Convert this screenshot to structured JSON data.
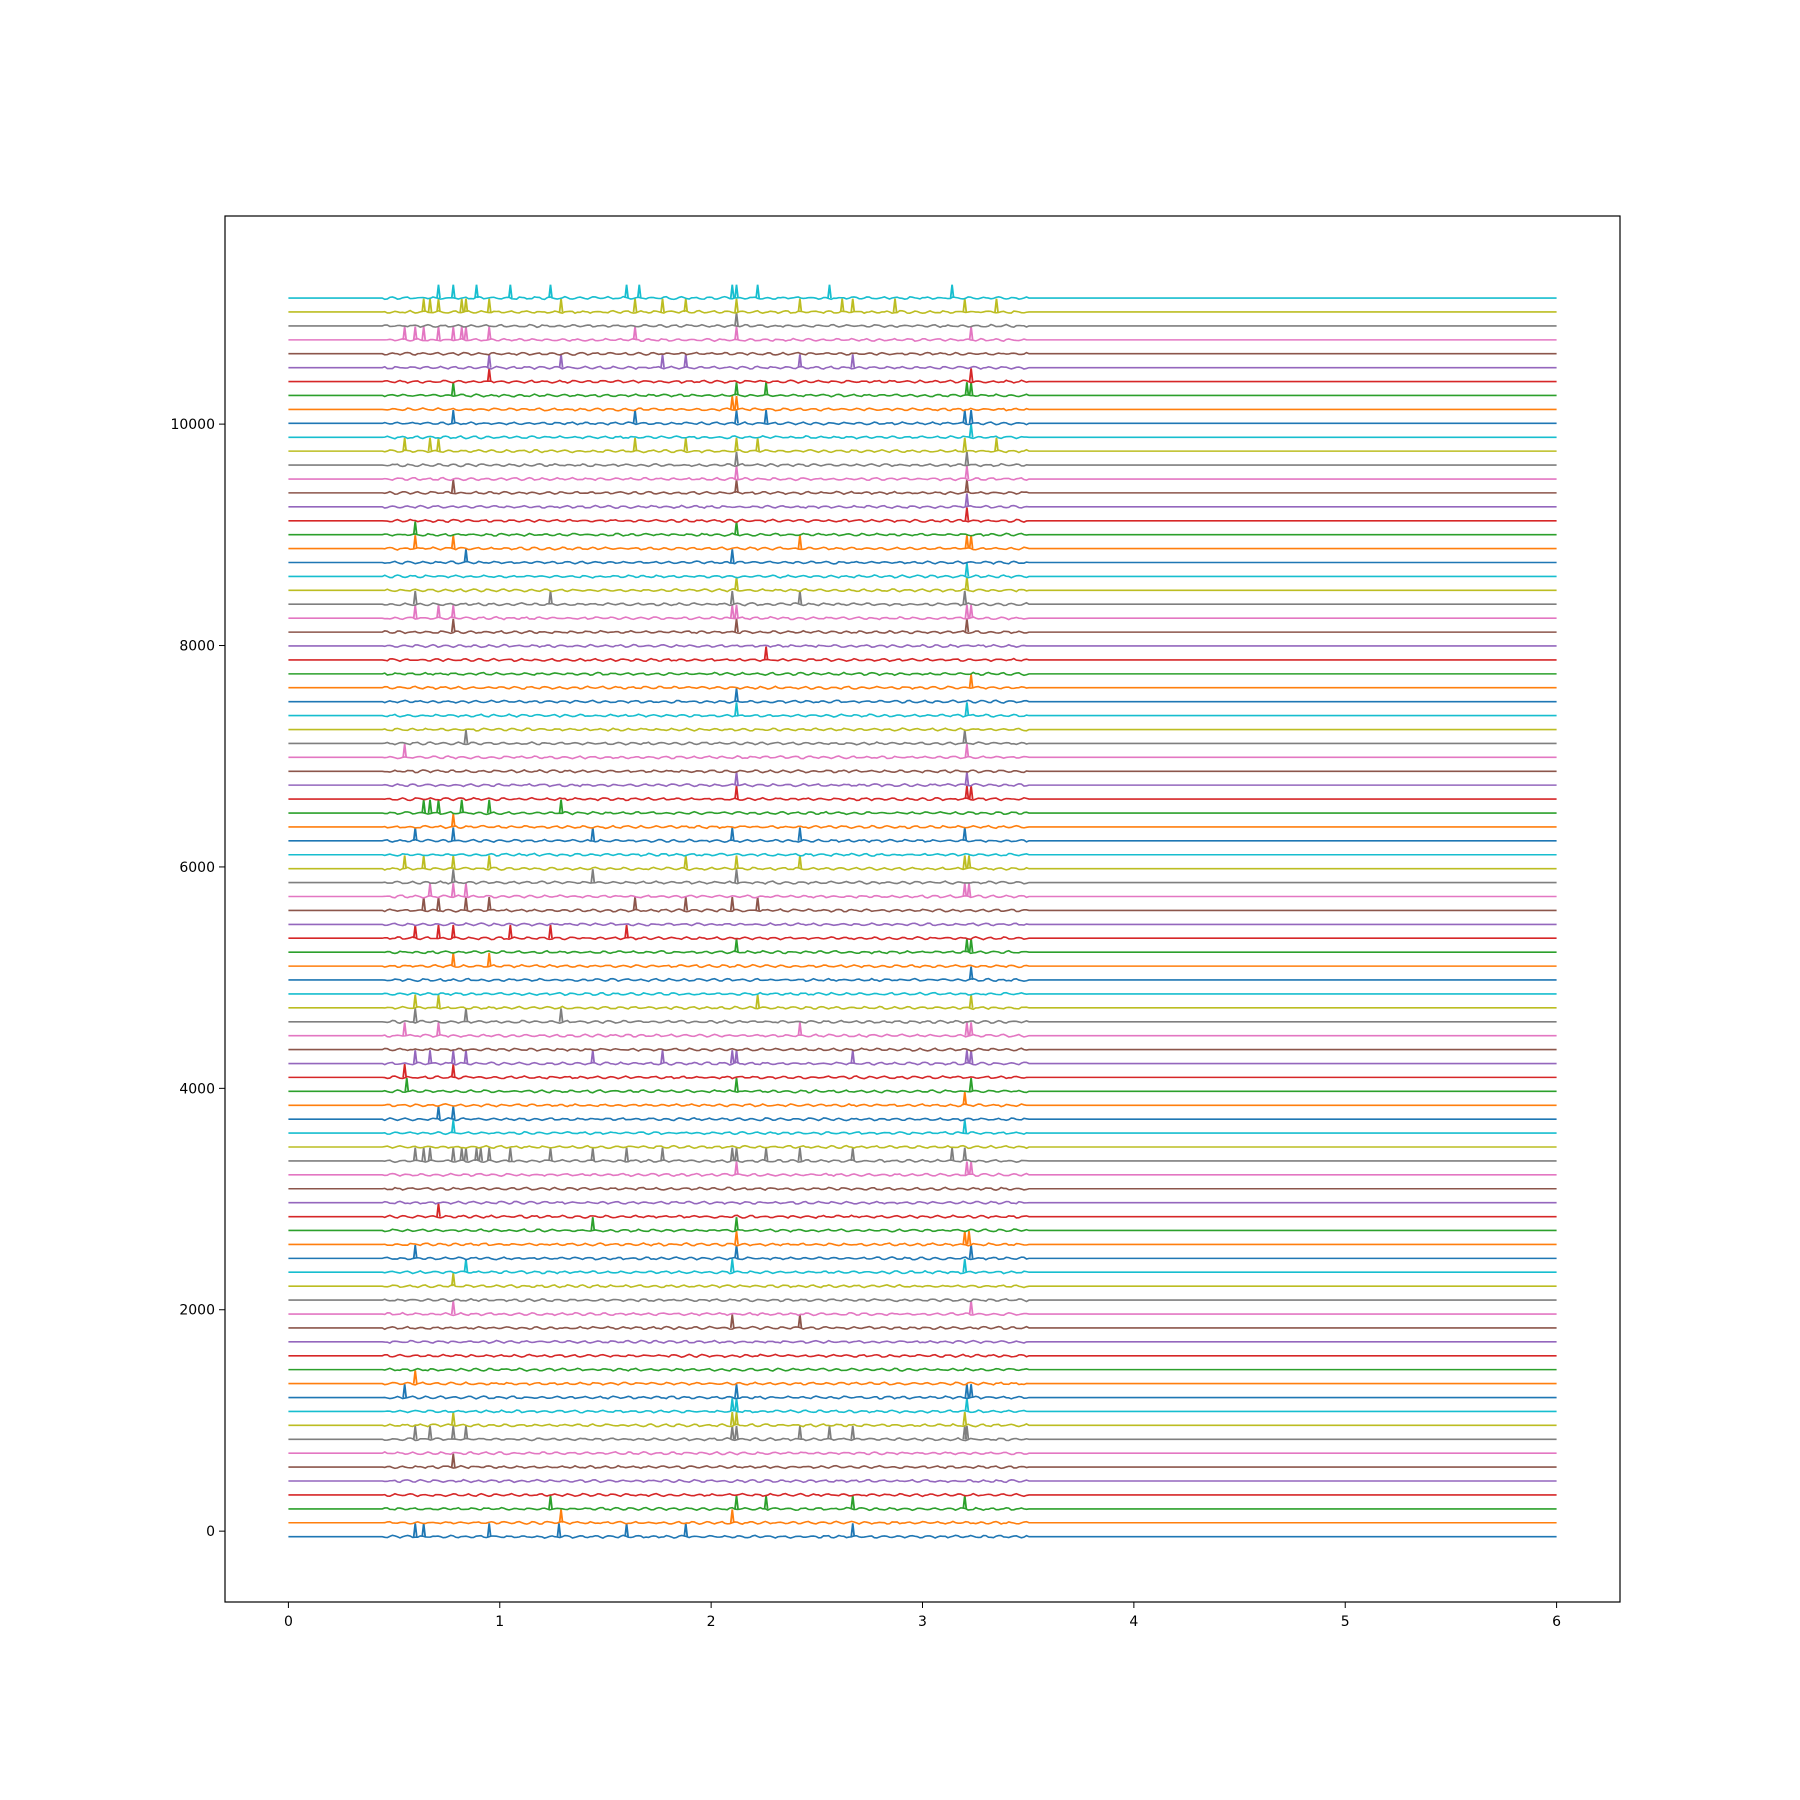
{
  "chart_data": {
    "type": "line",
    "title": "",
    "xlabel": "",
    "ylabel": "",
    "xlim": [
      -0.3,
      6.3
    ],
    "ylim": [
      -640,
      11880
    ],
    "x_range": [
      0,
      6
    ],
    "activity_end_x": 3.5,
    "xticks": [
      0,
      1,
      2,
      3,
      4,
      5,
      6
    ],
    "yticks": [
      0,
      2000,
      4000,
      6000,
      8000,
      10000
    ],
    "baseline_start": -50,
    "baseline_step": 125.7,
    "grid": false,
    "legend": "none",
    "series_colors": [
      "#1f77b4",
      "#ff7f0e",
      "#2ca02c",
      "#d62728",
      "#9467bd",
      "#8c564b",
      "#e377c2",
      "#7f7f7f",
      "#bcbd22",
      "#17becf"
    ],
    "series": [
      {
        "baseline": -50,
        "spikes": [
          0.6,
          0.64,
          0.95,
          1.28,
          1.6,
          1.88,
          2.67
        ],
        "peak": 120
      },
      {
        "baseline": 76,
        "spikes": [
          1.29,
          2.1
        ],
        "peak": 120
      },
      {
        "baseline": 201,
        "spikes": [
          1.24,
          2.12,
          2.26,
          2.67,
          3.2
        ],
        "peak": 120
      },
      {
        "baseline": 327,
        "spikes": [],
        "peak": 120
      },
      {
        "baseline": 453,
        "spikes": [],
        "peak": 120
      },
      {
        "baseline": 579,
        "spikes": [
          0.78
        ],
        "peak": 120
      },
      {
        "baseline": 704,
        "spikes": [],
        "peak": 120
      },
      {
        "baseline": 830,
        "spikes": [
          0.6,
          0.67,
          0.78,
          0.84,
          2.1,
          2.12,
          2.42,
          2.56,
          2.67,
          3.2,
          3.21
        ],
        "peak": 120
      },
      {
        "baseline": 956,
        "spikes": [
          0.78,
          2.1,
          2.12,
          3.2
        ],
        "peak": 120
      },
      {
        "baseline": 1081,
        "spikes": [
          2.1,
          2.12,
          3.21
        ],
        "peak": 120
      },
      {
        "baseline": 1207,
        "spikes": [
          0.55,
          2.12,
          3.21,
          3.23
        ],
        "peak": 120
      },
      {
        "baseline": 1333,
        "spikes": [
          0.6
        ],
        "peak": 120
      },
      {
        "baseline": 1459,
        "spikes": [],
        "peak": 120
      },
      {
        "baseline": 1584,
        "spikes": [],
        "peak": 120
      },
      {
        "baseline": 1710,
        "spikes": [],
        "peak": 120
      },
      {
        "baseline": 1836,
        "spikes": [
          2.1,
          2.42
        ],
        "peak": 120
      },
      {
        "baseline": 1961,
        "spikes": [
          0.78,
          3.23
        ],
        "peak": 120
      },
      {
        "baseline": 2087,
        "spikes": [],
        "peak": 120
      },
      {
        "baseline": 2213,
        "spikes": [
          0.78
        ],
        "peak": 120
      },
      {
        "baseline": 2339,
        "spikes": [
          0.84,
          2.1,
          3.2
        ],
        "peak": 120
      },
      {
        "baseline": 2464,
        "spikes": [
          0.6,
          2.12,
          3.23
        ],
        "peak": 120
      },
      {
        "baseline": 2590,
        "spikes": [
          2.12,
          3.2,
          3.22
        ],
        "peak": 120
      },
      {
        "baseline": 2716,
        "spikes": [
          1.44,
          2.12
        ],
        "peak": 120
      },
      {
        "baseline": 2841,
        "spikes": [
          0.71
        ],
        "peak": 120
      },
      {
        "baseline": 2967,
        "spikes": [],
        "peak": 120
      },
      {
        "baseline": 3093,
        "spikes": [],
        "peak": 120
      },
      {
        "baseline": 3219,
        "spikes": [
          2.12,
          3.21,
          3.23
        ],
        "peak": 120
      },
      {
        "baseline": 3344,
        "spikes": [
          0.6,
          0.64,
          0.67,
          0.78,
          0.82,
          0.84,
          0.89,
          0.91,
          0.95,
          1.05,
          1.24,
          1.44,
          1.6,
          1.77,
          2.1,
          2.12,
          2.26,
          2.42,
          2.67,
          3.14,
          3.2
        ],
        "peak": 120
      },
      {
        "baseline": 3470,
        "spikes": [],
        "peak": 120
      },
      {
        "baseline": 3596,
        "spikes": [
          0.78,
          3.2
        ],
        "peak": 120
      },
      {
        "baseline": 3721,
        "spikes": [
          0.71,
          0.78
        ],
        "peak": 120
      },
      {
        "baseline": 3847,
        "spikes": [
          3.2
        ],
        "peak": 120
      },
      {
        "baseline": 3973,
        "spikes": [
          0.56,
          2.12,
          3.23
        ],
        "peak": 120
      },
      {
        "baseline": 4099,
        "spikes": [
          0.55,
          0.78
        ],
        "peak": 120
      },
      {
        "baseline": 4224,
        "spikes": [
          0.6,
          0.67,
          0.78,
          0.84,
          1.44,
          1.77,
          2.1,
          2.12,
          2.67,
          3.21,
          3.23
        ],
        "peak": 120
      },
      {
        "baseline": 4350,
        "spikes": [],
        "peak": 120
      },
      {
        "baseline": 4476,
        "spikes": [
          0.55,
          0.71,
          2.42,
          3.21,
          3.23
        ],
        "peak": 120
      },
      {
        "baseline": 4601,
        "spikes": [
          0.6,
          0.84,
          1.29
        ],
        "peak": 120
      },
      {
        "baseline": 4727,
        "spikes": [
          0.6,
          0.71,
          2.22,
          3.23
        ],
        "peak": 120
      },
      {
        "baseline": 4853,
        "spikes": [],
        "peak": 120
      },
      {
        "baseline": 4979,
        "spikes": [
          3.23
        ],
        "peak": 120
      },
      {
        "baseline": 5104,
        "spikes": [
          0.78,
          0.95
        ],
        "peak": 120
      },
      {
        "baseline": 5230,
        "spikes": [
          2.12,
          3.21,
          3.23
        ],
        "peak": 120
      },
      {
        "baseline": 5356,
        "spikes": [
          0.6,
          0.71,
          0.78,
          1.05,
          1.24,
          1.6
        ],
        "peak": 120
      },
      {
        "baseline": 5481,
        "spikes": [],
        "peak": 120
      },
      {
        "baseline": 5607,
        "spikes": [
          0.64,
          0.71,
          0.84,
          0.95,
          1.64,
          1.88,
          2.1,
          2.22
        ],
        "peak": 120
      },
      {
        "baseline": 5733,
        "spikes": [
          0.67,
          0.78,
          0.84,
          3.2,
          3.22
        ],
        "peak": 120
      },
      {
        "baseline": 5859,
        "spikes": [
          0.78,
          1.44,
          2.12
        ],
        "peak": 120
      },
      {
        "baseline": 5984,
        "spikes": [
          0.55,
          0.64,
          0.78,
          0.95,
          1.88,
          2.12,
          2.42,
          3.2,
          3.22
        ],
        "peak": 120
      },
      {
        "baseline": 6110,
        "spikes": [],
        "peak": 120
      },
      {
        "baseline": 6236,
        "spikes": [
          0.6,
          0.78,
          1.44,
          2.1,
          2.42,
          3.2
        ],
        "peak": 120
      },
      {
        "baseline": 6361,
        "spikes": [
          0.78
        ],
        "peak": 120
      },
      {
        "baseline": 6487,
        "spikes": [
          0.64,
          0.67,
          0.71,
          0.82,
          0.95,
          1.29
        ],
        "peak": 120
      },
      {
        "baseline": 6613,
        "spikes": [
          2.12,
          3.21,
          3.23
        ],
        "peak": 120
      },
      {
        "baseline": 6739,
        "spikes": [
          2.12,
          3.21
        ],
        "peak": 120
      },
      {
        "baseline": 6864,
        "spikes": [],
        "peak": 120
      },
      {
        "baseline": 6990,
        "spikes": [
          0.55,
          3.21
        ],
        "peak": 120
      },
      {
        "baseline": 7116,
        "spikes": [
          0.84,
          3.2
        ],
        "peak": 120
      },
      {
        "baseline": 7241,
        "spikes": [],
        "peak": 120
      },
      {
        "baseline": 7367,
        "spikes": [
          2.12,
          3.21
        ],
        "peak": 120
      },
      {
        "baseline": 7493,
        "spikes": [
          2.12
        ],
        "peak": 120
      },
      {
        "baseline": 7619,
        "spikes": [
          3.23
        ],
        "peak": 120
      },
      {
        "baseline": 7744,
        "spikes": [],
        "peak": 120
      },
      {
        "baseline": 7870,
        "spikes": [
          2.26
        ],
        "peak": 120
      },
      {
        "baseline": 7996,
        "spikes": [],
        "peak": 120
      },
      {
        "baseline": 8121,
        "spikes": [
          0.78,
          2.12,
          3.21
        ],
        "peak": 120
      },
      {
        "baseline": 8247,
        "spikes": [
          0.6,
          0.71,
          0.78,
          2.1,
          2.12,
          3.21,
          3.23
        ],
        "peak": 120
      },
      {
        "baseline": 8373,
        "spikes": [
          0.6,
          1.24,
          2.1,
          2.42,
          3.2
        ],
        "peak": 120
      },
      {
        "baseline": 8499,
        "spikes": [
          2.12,
          3.21
        ],
        "peak": 120
      },
      {
        "baseline": 8624,
        "spikes": [
          3.21
        ],
        "peak": 120
      },
      {
        "baseline": 8750,
        "spikes": [
          0.84,
          2.1
        ],
        "peak": 120
      },
      {
        "baseline": 8876,
        "spikes": [
          0.6,
          0.78,
          2.42,
          3.21,
          3.23
        ],
        "peak": 120
      },
      {
        "baseline": 9001,
        "spikes": [
          0.6,
          2.12
        ],
        "peak": 120
      },
      {
        "baseline": 9127,
        "spikes": [
          3.21
        ],
        "peak": 120
      },
      {
        "baseline": 9253,
        "spikes": [
          3.21
        ],
        "peak": 120
      },
      {
        "baseline": 9379,
        "spikes": [
          0.78,
          2.12,
          3.21
        ],
        "peak": 120
      },
      {
        "baseline": 9504,
        "spikes": [
          2.12,
          3.21
        ],
        "peak": 120
      },
      {
        "baseline": 9630,
        "spikes": [
          2.12,
          3.21
        ],
        "peak": 120
      },
      {
        "baseline": 9756,
        "spikes": [
          0.55,
          0.67,
          0.71,
          1.64,
          1.88,
          2.12,
          2.22,
          3.2,
          3.35
        ],
        "peak": 120
      },
      {
        "baseline": 9881,
        "spikes": [
          3.23
        ],
        "peak": 120
      },
      {
        "baseline": 10007,
        "spikes": [
          0.78,
          1.64,
          2.12,
          2.26,
          3.2,
          3.23
        ],
        "peak": 120
      },
      {
        "baseline": 10133,
        "spikes": [
          2.1,
          2.12
        ],
        "peak": 120
      },
      {
        "baseline": 10259,
        "spikes": [
          0.78,
          2.12,
          2.26,
          3.21,
          3.23
        ],
        "peak": 120
      },
      {
        "baseline": 10384,
        "spikes": [
          0.95,
          3.23
        ],
        "peak": 120
      },
      {
        "baseline": 10510,
        "spikes": [
          0.95,
          1.29,
          1.77,
          1.88,
          2.42,
          2.67
        ],
        "peak": 120
      },
      {
        "baseline": 10636,
        "spikes": [],
        "peak": 120
      },
      {
        "baseline": 10761,
        "spikes": [
          0.55,
          0.6,
          0.64,
          0.71,
          0.78,
          0.82,
          0.84,
          0.95,
          1.64,
          2.12,
          3.23
        ],
        "peak": 120
      },
      {
        "baseline": 10887,
        "spikes": [
          2.12
        ],
        "peak": 120
      },
      {
        "baseline": 11013,
        "spikes": [
          0.64,
          0.67,
          0.71,
          0.82,
          0.84,
          0.95,
          1.29,
          1.64,
          1.77,
          1.88,
          2.12,
          2.42,
          2.62,
          2.67,
          2.87,
          3.2,
          3.35
        ],
        "peak": 120
      },
      {
        "baseline": 11139,
        "spikes": [
          0.71,
          0.78,
          0.89,
          1.05,
          1.24,
          1.6,
          1.66,
          2.1,
          2.12,
          2.22,
          2.56,
          3.14
        ],
        "peak": 120
      }
    ]
  }
}
